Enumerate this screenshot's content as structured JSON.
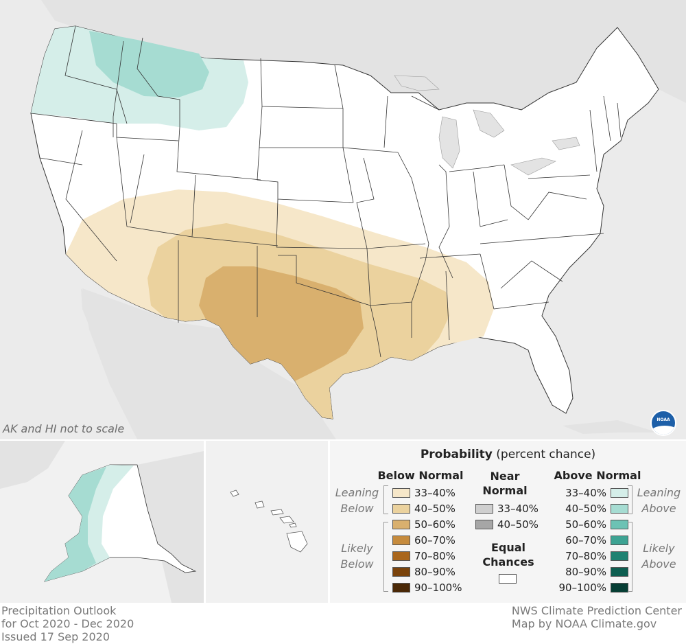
{
  "map": {
    "scale_note": "AK and HI not to scale",
    "logo_text": "NOAA",
    "colors": {
      "background": "#ebebeb",
      "land_other": "#e3e3e3",
      "land_us": "#ffffff",
      "state_border": "#333333",
      "above_leaning": "#d5eee9",
      "above_likely": "#a6dcd2",
      "below_leaning": "#f6e7c9",
      "below_mid": "#ebd29e",
      "below_likely": "#d9b06e"
    }
  },
  "legend": {
    "title_bold": "Probability",
    "title_rest": "(percent chance)",
    "below_header": "Below Normal",
    "near_header_1": "Near",
    "near_header_2": "Normal",
    "above_header": "Above Normal",
    "leaning_1": "Leaning",
    "leaning_below": "Below",
    "leaning_above": "Above",
    "likely": "Likely",
    "likely_below": "Below",
    "likely_above": "Above",
    "equal_1": "Equal",
    "equal_2": "Chances",
    "below_rows": [
      {
        "label": "33–40%",
        "color": "#f6e7c9"
      },
      {
        "label": "40–50%",
        "color": "#ebd29e"
      },
      {
        "label": "50–60%",
        "color": "#d9b06e"
      },
      {
        "label": "60–70%",
        "color": "#c68b3d"
      },
      {
        "label": "70–80%",
        "color": "#a9661c"
      },
      {
        "label": "80–90%",
        "color": "#7a430b"
      },
      {
        "label": "90–100%",
        "color": "#4a2806"
      }
    ],
    "near_rows": [
      {
        "label": "33–40%",
        "color": "#cfcfcf"
      },
      {
        "label": "40–50%",
        "color": "#a6a6a6"
      }
    ],
    "above_rows": [
      {
        "label": "33–40%",
        "color": "#d5eee9"
      },
      {
        "label": "40–50%",
        "color": "#a6dcd2"
      },
      {
        "label": "50–60%",
        "color": "#6cc2b4"
      },
      {
        "label": "60–70%",
        "color": "#3da393"
      },
      {
        "label": "70–80%",
        "color": "#1f8272"
      },
      {
        "label": "80–90%",
        "color": "#0d5e50"
      },
      {
        "label": "90–100%",
        "color": "#063e34"
      }
    ]
  },
  "footer": {
    "left": [
      "Precipitation Outlook",
      "for Oct 2020 - Dec 2020",
      "Issued 17 Sep 2020"
    ],
    "right": [
      "NWS Climate Prediction Center",
      "Map by NOAA Climate.gov"
    ]
  }
}
